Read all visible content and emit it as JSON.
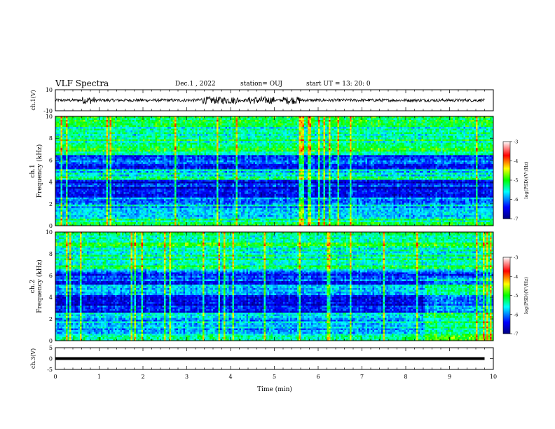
{
  "header": {
    "title": "VLF Spectra",
    "date": "Dec.1 , 2022",
    "station": "station= OUJ",
    "start": "start  UT =   13: 20: 0"
  },
  "chart_data": [
    {
      "type": "line",
      "panel": "ch1-waveform",
      "ylabel": "ch.1(V)",
      "ylim": [
        -10,
        10
      ],
      "yticks": [
        "10",
        "-10"
      ],
      "xlim": [
        0,
        10
      ]
    },
    {
      "type": "heatmap",
      "panel": "ch1-spectrogram",
      "ylabel_top": "ch.1",
      "ylabel": "Frequency (kHz)",
      "ylim": [
        0,
        10
      ],
      "yticks": [
        "0",
        "2",
        "4",
        "6",
        "8",
        "10"
      ],
      "xlim": [
        0,
        10
      ],
      "colorbar": {
        "label": "log(PSD)(V²/Hz)",
        "range": [
          -7,
          -3
        ],
        "ticks": [
          "-3",
          "-4",
          "-5",
          "-6",
          "-7"
        ]
      }
    },
    {
      "type": "heatmap",
      "panel": "ch2-spectrogram",
      "ylabel_top": "ch.2",
      "ylabel": "Frequency (kHz)",
      "ylim": [
        0,
        10
      ],
      "yticks": [
        "0",
        "2",
        "4",
        "6",
        "8",
        "10"
      ],
      "xlim": [
        0,
        10
      ],
      "colorbar": {
        "label": "log(PSD)(V²/Hz)",
        "range": [
          -7,
          -3
        ],
        "ticks": [
          "-3",
          "-4",
          "-5",
          "-6",
          "-7"
        ]
      }
    },
    {
      "type": "line",
      "panel": "ch3-waveform",
      "ylabel": "ch.3(V)",
      "ylim": [
        -5,
        5
      ],
      "yticks": [
        "5",
        "0",
        "-5"
      ],
      "xlim": [
        0,
        10
      ],
      "x": [
        0,
        9.8
      ],
      "y": [
        0,
        0
      ]
    }
  ],
  "xaxis": {
    "label": "Time (min)",
    "ticks": [
      "0",
      "1",
      "2",
      "3",
      "4",
      "5",
      "6",
      "7",
      "8",
      "9",
      "10"
    ]
  },
  "colors": {
    "background": "#ffffff",
    "waveform": "#000000"
  }
}
